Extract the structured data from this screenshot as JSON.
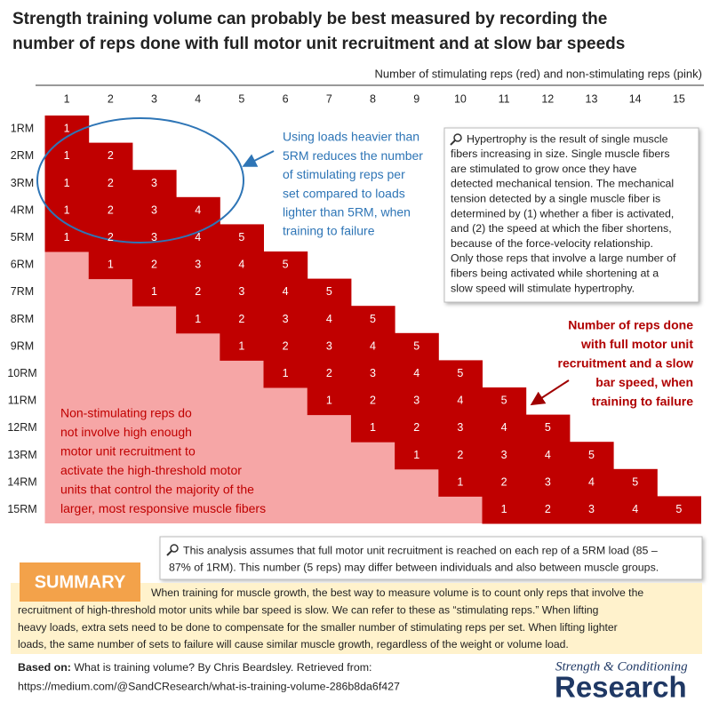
{
  "title": {
    "lines": [
      "Strength training volume can probably be best measured by recording the",
      "number of reps done with full motor unit recruitment and at slow bar speeds"
    ]
  },
  "axis_label": "Number of stimulating reps (red) and non-stimulating reps (pink)",
  "columns": [
    1,
    2,
    3,
    4,
    5,
    6,
    7,
    8,
    9,
    10,
    11,
    12,
    13,
    14,
    15
  ],
  "rows": [
    {
      "label": "1RM",
      "reps": [
        1
      ]
    },
    {
      "label": "2RM",
      "reps": [
        1,
        2
      ]
    },
    {
      "label": "3RM",
      "reps": [
        1,
        2,
        3
      ]
    },
    {
      "label": "4RM",
      "reps": [
        1,
        2,
        3,
        4
      ]
    },
    {
      "label": "5RM",
      "reps": [
        1,
        2,
        3,
        4,
        5
      ]
    },
    {
      "label": "6RM",
      "reps": [
        1,
        2,
        3,
        4,
        5
      ]
    },
    {
      "label": "7RM",
      "reps": [
        1,
        2,
        3,
        4,
        5
      ]
    },
    {
      "label": "8RM",
      "reps": [
        1,
        2,
        3,
        4,
        5
      ]
    },
    {
      "label": "9RM",
      "reps": [
        1,
        2,
        3,
        4,
        5
      ]
    },
    {
      "label": "10RM",
      "reps": [
        1,
        2,
        3,
        4,
        5
      ]
    },
    {
      "label": "11RM",
      "reps": [
        1,
        2,
        3,
        4,
        5
      ]
    },
    {
      "label": "12RM",
      "reps": [
        1,
        2,
        3,
        4,
        5
      ]
    },
    {
      "label": "13RM",
      "reps": [
        1,
        2,
        3,
        4,
        5
      ]
    },
    {
      "label": "14RM",
      "reps": [
        1,
        2,
        3,
        4,
        5
      ]
    },
    {
      "label": "15RM",
      "reps": [
        1,
        2,
        3,
        4,
        5
      ]
    }
  ],
  "annotations": {
    "ellipse_note": [
      "Using loads heavier than",
      "5RM reduces the number",
      "of stimulating reps per",
      "set compared to loads",
      "lighter than 5RM, when",
      "training to failure"
    ],
    "hypertrophy_note": [
      "Hypertrophy is the result of single muscle",
      "fibers increasing in size. Single muscle fibers",
      "are stimulated to grow once they have",
      "detected mechanical tension. The mechanical",
      "tension detected by a single muscle fiber is",
      "determined by (1) whether a fiber is activated,",
      "and (2) the speed at which the fiber shortens,",
      "because of the force-velocity relationship.",
      "Only those reps that involve a large number of",
      "fibers being activated while shortening at a",
      "slow speed will stimulate hypertrophy."
    ],
    "red_note": [
      "Number of reps done",
      "with full motor unit",
      "recruitment and a slow",
      "bar speed, when",
      "training to failure"
    ],
    "pink_note": [
      "Non-stimulating reps do",
      "not involve high enough",
      "motor unit recruitment to",
      "activate the high-threshold motor",
      "units that control the majority of the",
      "larger, most responsive muscle fibers"
    ]
  },
  "footnote": [
    "This analysis assumes that full motor unit recruitment is reached on each rep of a 5RM load (85 –",
    "87% of 1RM). This number (5 reps) may differ between individuals and also between muscle groups."
  ],
  "summary": {
    "label": "SUMMARY",
    "lines": [
      "When training for muscle growth, the best way to measure volume is to count only reps that involve the",
      "recruitment of high-threshold motor units while bar speed is slow. We can refer to these as “stimulating reps.” When lifting",
      "heavy loads, extra sets need to be done to compensate for the smaller number of stimulating reps per set. When lifting lighter",
      "loads, the same number of sets to failure will cause similar muscle growth, regardless of the weight or volume load."
    ]
  },
  "source": {
    "label": "Based on:",
    "lines": [
      " What is training volume? By Chris Beardsley. Retrieved from:",
      "https://medium.com/@SandCResearch/what-is-training-volume-286b8da6f427"
    ]
  },
  "logo": {
    "tagline": "Strength & Conditioning",
    "name": "Research"
  }
}
